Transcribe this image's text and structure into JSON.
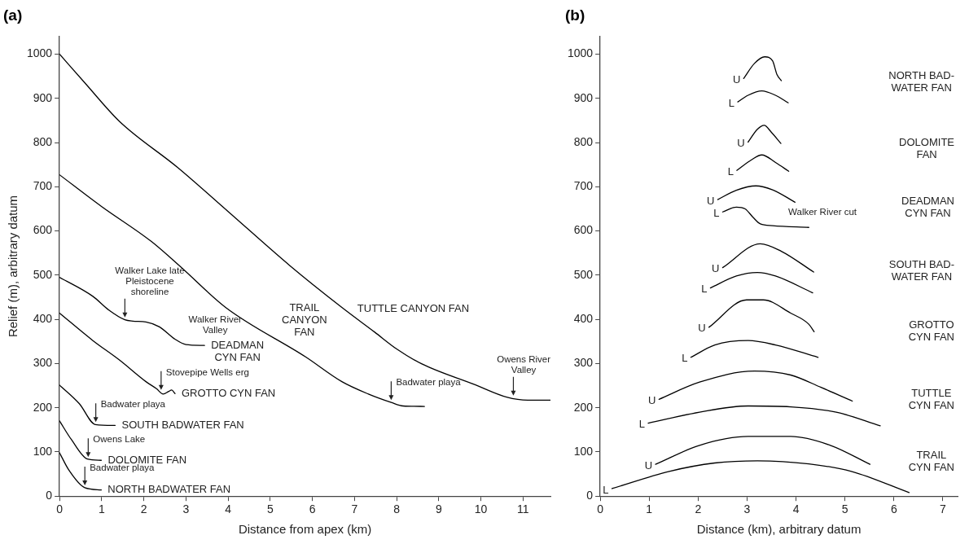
{
  "chart_data": [
    {
      "type": "line",
      "title": "(a)",
      "xlabel": "Distance from apex (km)",
      "ylabel": "Relief (m), arbitrary datum",
      "xlim": [
        0,
        11.65
      ],
      "xticks": [
        0,
        1,
        2,
        3,
        4,
        5,
        6,
        7,
        8,
        9,
        10,
        11
      ],
      "ylim": [
        0,
        1040
      ],
      "yticks": [
        0,
        100,
        200,
        300,
        400,
        500,
        600,
        700,
        800,
        900,
        1000
      ],
      "grid": false,
      "legend": false,
      "marker": "none",
      "line_style": "solid",
      "series": [
        {
          "name": "TUTTLE CANYON FAN",
          "color": "#000000",
          "x": [
            0,
            0.6,
            1.42,
            2.81,
            4,
            5.46,
            6.7,
            7.48,
            8,
            8.6,
            9.86,
            10.61,
            11.11,
            11.65
          ],
          "values": [
            1000,
            935,
            848,
            743,
            644,
            522,
            427,
            371,
            333,
            299,
            252,
            224,
            217,
            217
          ]
        },
        {
          "name": "TRAIL\nCANYON\nFAN",
          "color": "#000000",
          "x": [
            0,
            1,
            2.18,
            2.87,
            3.94,
            5.84,
            6.7,
            7.33,
            7.87,
            8.15,
            8.66
          ],
          "values": [
            727,
            655,
            576,
            519,
            427,
            315,
            259,
            231,
            212,
            204,
            203
          ]
        },
        {
          "name": "DEADMAN\nCYN FAN",
          "color": "#000000",
          "x": [
            0,
            0.79,
            1.17,
            1.55,
            1.74,
            2.05,
            2.37,
            2.74,
            3,
            3.44
          ],
          "values": [
            495,
            452,
            421,
            399,
            396,
            394,
            383,
            355,
            343,
            341
          ]
        },
        {
          "name": "GROTTO CYN FAN",
          "color": "#000000",
          "x": [
            0,
            0.79,
            1.42,
            2.05,
            2.3,
            2.46,
            2.59,
            2.66,
            2.74
          ],
          "values": [
            414,
            352,
            308,
            259,
            243,
            231,
            237,
            240,
            232
          ]
        },
        {
          "name": "SOUTH BADWATER FAN",
          "color": "#000000",
          "x": [
            0,
            0.47,
            0.85,
            1.32
          ],
          "values": [
            251,
            209,
            162,
            160
          ]
        },
        {
          "name": "DOLOMITE FAN",
          "color": "#000000",
          "x": [
            0,
            0.28,
            0.66,
            0.99
          ],
          "values": [
            170,
            128,
            84,
            81
          ]
        },
        {
          "name": "NORTH BADWATER FAN",
          "color": "#000000",
          "x": [
            0,
            0.22,
            0.6,
            0.99
          ],
          "values": [
            98,
            59,
            19,
            14
          ]
        }
      ],
      "annotations": [
        {
          "text": "Walker Lake late\nPleistocene\nshoreline",
          "x": 1.55,
          "y": 399
        },
        {
          "text": "Walker River\nValley",
          "x": 3.44,
          "y": 341
        },
        {
          "text": "Stovepipe Wells erg",
          "x": 2.41,
          "y": 235
        },
        {
          "text": "Badwater playa",
          "x": 0.86,
          "y": 162
        },
        {
          "text": "Owens Lake",
          "x": 0.68,
          "y": 83
        },
        {
          "text": "Badwater playa",
          "x": 0.6,
          "y": 19
        },
        {
          "text": "Badwater playa",
          "x": 7.87,
          "y": 212
        },
        {
          "text": "Owens River\nValley",
          "x": 10.77,
          "y": 222
        }
      ]
    },
    {
      "type": "line",
      "title": "(b)",
      "xlabel": "Distance (km), arbitrary datum",
      "xlim": [
        0,
        7.3
      ],
      "xticks": [
        0,
        1,
        2,
        3,
        4,
        5,
        6,
        7
      ],
      "ylim": [
        0,
        1040
      ],
      "yticks": [
        0,
        100,
        200,
        300,
        400,
        500,
        600,
        700,
        800,
        900,
        1000
      ],
      "grid": false,
      "legend": false,
      "marker": "none",
      "line_style": "solid",
      "series": [
        {
          "name": "U",
          "color": "#000000",
          "x": [
            2.93,
            3.15,
            3.36,
            3.52,
            3.61,
            3.7
          ],
          "values": [
            945,
            979,
            994,
            985,
            954,
            940
          ]
        },
        {
          "name": "L",
          "color": "#000000",
          "x": [
            2.81,
            3.02,
            3.3,
            3.58,
            3.84
          ],
          "values": [
            892,
            907,
            917,
            907,
            890
          ]
        },
        {
          "name": "U",
          "color": "#000000",
          "x": [
            3.02,
            3.21,
            3.35,
            3.49,
            3.69
          ],
          "values": [
            801,
            830,
            839,
            824,
            798
          ]
        },
        {
          "name": "L",
          "color": "#000000",
          "x": [
            2.79,
            3.09,
            3.3,
            3.58,
            3.85
          ],
          "values": [
            737,
            761,
            772,
            755,
            735
          ]
        },
        {
          "name": "U",
          "color": "#000000",
          "x": [
            2.4,
            2.78,
            3.18,
            3.52,
            3.98
          ],
          "values": [
            671,
            692,
            702,
            693,
            665
          ]
        },
        {
          "name": "L",
          "color": "#000000",
          "x": [
            2.5,
            2.78,
            2.96,
            3.12,
            3.27,
            3.52,
            4.26
          ],
          "values": [
            643,
            654,
            650,
            631,
            616,
            612,
            608
          ]
        },
        {
          "name": "U",
          "color": "#000000",
          "x": [
            2.5,
            3.27,
            3.7,
            4.36
          ],
          "values": [
            517,
            571,
            554,
            507
          ]
        },
        {
          "name": "L",
          "color": "#000000",
          "x": [
            2.25,
            2.78,
            3.21,
            3.58,
            4.34
          ],
          "values": [
            471,
            498,
            506,
            498,
            460
          ]
        },
        {
          "name": "U",
          "color": "#000000",
          "x": [
            2.22,
            2.99,
            3.33,
            3.89,
            4.26,
            4.37
          ],
          "values": [
            382,
            444,
            444,
            414,
            389,
            372
          ]
        },
        {
          "name": "L",
          "color": "#000000",
          "x": [
            1.85,
            2.34,
            3.02,
            3.58,
            4.45
          ],
          "values": [
            314,
            342,
            352,
            342,
            314
          ]
        },
        {
          "name": "U",
          "color": "#000000",
          "x": [
            1.2,
            2.03,
            3.15,
            3.89,
            4.51,
            5.15
          ],
          "values": [
            219,
            258,
            283,
            274,
            246,
            215
          ]
        },
        {
          "name": "L",
          "color": "#000000",
          "x": [
            0.98,
            2.03,
            3.02,
            3.89,
            4.82,
            5.72
          ],
          "values": [
            165,
            190,
            204,
            202,
            190,
            159
          ]
        },
        {
          "name": "U",
          "color": "#000000",
          "x": [
            1.13,
            2.03,
            3.02,
            3.89,
            4.7,
            5.51
          ],
          "values": [
            72,
            115,
            135,
            135,
            115,
            72
          ]
        },
        {
          "name": "L",
          "color": "#000000",
          "x": [
            0.24,
            1.41,
            2.34,
            3.21,
            4.26,
            5.13,
            6.31
          ],
          "values": [
            17,
            56,
            75,
            80,
            73,
            56,
            8
          ]
        }
      ],
      "annotations": [
        "NORTH BAD-\nWATER FAN",
        "DOLOMITE\nFAN",
        "DEADMAN\nCYN FAN",
        "SOUTH BAD-\nWATER FAN",
        "GROTTO\nCYN FAN",
        "TUTTLE\nCYN FAN",
        "TRAIL\nCYN FAN",
        {
          "text": "Walker River cut",
          "x": 4.26,
          "y": 608
        }
      ]
    }
  ]
}
